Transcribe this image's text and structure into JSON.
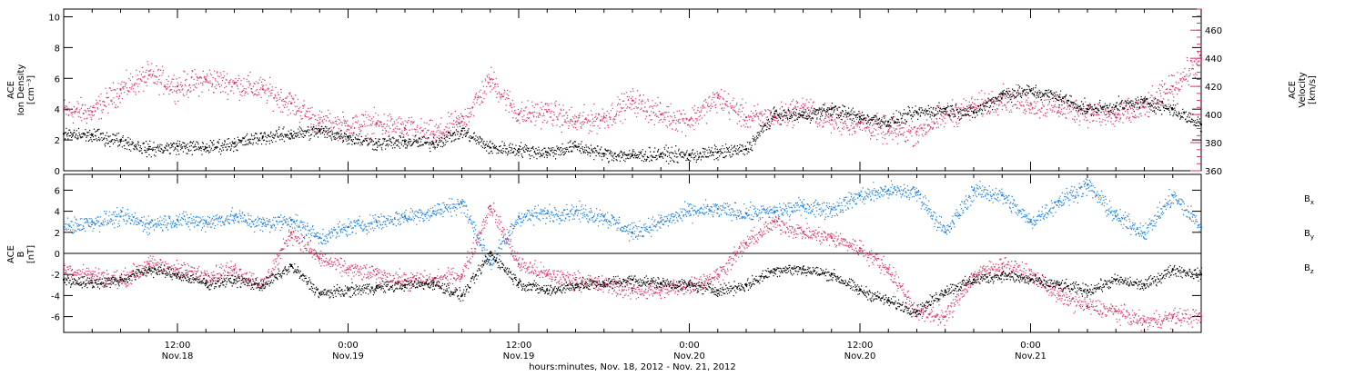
{
  "colors": {
    "black": "#000000",
    "pink": "#e0315f",
    "blue": "#1a7fe0",
    "axis": "#000000"
  },
  "chart_data": [
    {
      "type": "scatter",
      "panel": "density-velocity",
      "ylabel_left": [
        "ACE",
        "Ion Density",
        "[cm⁻³]"
      ],
      "ylabel_right": [
        "ACE",
        "Velocity",
        "[km/s]"
      ],
      "left_axis": {
        "range": [
          0,
          10.5
        ],
        "ticks": [
          0,
          2,
          4,
          6,
          8,
          10
        ],
        "tick_labels": [
          "0",
          "2",
          "4",
          "6",
          "8",
          "10"
        ]
      },
      "right_axis": {
        "range": [
          360,
          475
        ],
        "ticks": [
          360,
          380,
          400,
          420,
          440,
          460
        ],
        "tick_labels": [
          "360",
          "380",
          "400",
          "420",
          "440",
          "460"
        ]
      },
      "series": [
        {
          "color": "black",
          "axis": "left",
          "x": [
            0,
            2,
            4,
            6,
            8,
            10,
            12,
            14,
            16,
            18,
            20,
            22,
            24,
            26,
            28,
            30,
            32,
            34,
            36,
            38,
            40,
            42,
            44,
            46,
            48,
            50,
            52,
            54,
            56,
            58,
            60,
            62,
            64,
            66,
            68,
            70,
            72,
            74,
            76,
            78,
            80
          ],
          "y": [
            2.4,
            2.3,
            2.0,
            1.4,
            1.6,
            1.5,
            1.8,
            2.2,
            2.4,
            2.6,
            2.2,
            1.8,
            1.9,
            1.8,
            2.6,
            1.5,
            1.4,
            1.2,
            1.6,
            1.1,
            1.0,
            1.1,
            1.0,
            1.2,
            1.4,
            3.7,
            3.6,
            4.0,
            3.5,
            3.2,
            3.8,
            4.0,
            3.8,
            5.0,
            5.2,
            4.8,
            4.0,
            4.2,
            4.5,
            4.0,
            3.0
          ]
        },
        {
          "color": "pink",
          "axis": "right",
          "x": [
            0,
            2,
            4,
            6,
            8,
            10,
            12,
            14,
            16,
            18,
            20,
            22,
            24,
            26,
            28,
            30,
            32,
            34,
            36,
            38,
            40,
            42,
            44,
            46,
            48,
            50,
            52,
            54,
            56,
            58,
            60,
            62,
            64,
            66,
            68,
            70,
            72,
            74,
            76,
            78,
            80
          ],
          "y": [
            403,
            402,
            418,
            428,
            420,
            425,
            422,
            418,
            408,
            394,
            392,
            394,
            390,
            386,
            395,
            425,
            400,
            402,
            395,
            398,
            410,
            400,
            396,
            412,
            398,
            398,
            405,
            396,
            394,
            388,
            388,
            400,
            405,
            412,
            408,
            405,
            402,
            398,
            405,
            420,
            440
          ]
        }
      ]
    },
    {
      "type": "scatter",
      "panel": "magnetic-field",
      "ylabel_left": [
        "ACE",
        "B",
        "[nT]"
      ],
      "left_axis": {
        "range": [
          -7.5,
          7.5
        ],
        "ticks": [
          -6,
          -4,
          -2,
          0,
          2,
          4,
          6
        ],
        "tick_labels": [
          "-6",
          "-4",
          "-2",
          "0",
          "2",
          "4",
          "6"
        ]
      },
      "legend": [
        "Bx",
        "By",
        "Bz"
      ],
      "legend_placement": "right",
      "series": [
        {
          "name": "Bx",
          "color": "black",
          "x": [
            0,
            2,
            4,
            6,
            8,
            10,
            12,
            14,
            16,
            18,
            20,
            22,
            24,
            26,
            28,
            30,
            32,
            34,
            36,
            38,
            40,
            42,
            44,
            46,
            48,
            50,
            52,
            54,
            56,
            58,
            60,
            62,
            64,
            66,
            68,
            70,
            72,
            74,
            76,
            78,
            80
          ],
          "y": [
            -2.5,
            -2.8,
            -2.5,
            -1.5,
            -2.0,
            -2.8,
            -2.5,
            -3.0,
            -1.2,
            -3.8,
            -3.5,
            -3.2,
            -3.0,
            -2.8,
            -4.0,
            0.0,
            -2.8,
            -3.5,
            -3.0,
            -2.8,
            -2.5,
            -2.8,
            -3.0,
            -3.5,
            -3.0,
            -1.5,
            -1.5,
            -2.0,
            -3.5,
            -4.5,
            -5.5,
            -3.5,
            -2.5,
            -2.0,
            -2.5,
            -3.0,
            -3.5,
            -2.5,
            -3.0,
            -1.5,
            -2.0
          ]
        },
        {
          "name": "By",
          "color": "blue",
          "x": [
            0,
            2,
            4,
            6,
            8,
            10,
            12,
            14,
            16,
            18,
            20,
            22,
            24,
            26,
            28,
            30,
            32,
            34,
            36,
            38,
            40,
            42,
            44,
            46,
            48,
            50,
            52,
            54,
            56,
            58,
            60,
            62,
            64,
            66,
            68,
            70,
            72,
            74,
            76,
            78,
            80
          ],
          "y": [
            2.5,
            3.0,
            3.5,
            2.8,
            3.2,
            3.0,
            3.5,
            2.8,
            3.2,
            1.5,
            2.5,
            3.0,
            3.5,
            4.0,
            4.8,
            -1.0,
            3.5,
            3.8,
            4.0,
            3.5,
            2.0,
            3.0,
            4.0,
            4.2,
            3.8,
            4.0,
            4.5,
            4.2,
            5.5,
            6.0,
            5.8,
            2.0,
            6.0,
            5.5,
            3.0,
            5.0,
            6.5,
            3.5,
            2.0,
            5.5,
            2.5
          ]
        },
        {
          "name": "Bz",
          "color": "pink",
          "x": [
            0,
            2,
            4,
            6,
            8,
            10,
            12,
            14,
            16,
            18,
            20,
            22,
            24,
            26,
            28,
            30,
            32,
            34,
            36,
            38,
            40,
            42,
            44,
            46,
            48,
            50,
            52,
            54,
            56,
            58,
            60,
            62,
            64,
            66,
            68,
            70,
            72,
            74,
            76,
            78,
            80
          ],
          "y": [
            -1.5,
            -2.0,
            -2.5,
            -1.0,
            -1.5,
            -2.0,
            -1.5,
            -3.0,
            2.0,
            -0.5,
            -1.5,
            -2.0,
            -2.5,
            -2.5,
            -2.0,
            4.5,
            -1.0,
            -2.0,
            -2.5,
            -3.0,
            -3.5,
            -3.5,
            -3.0,
            -2.0,
            1.0,
            3.0,
            2.0,
            1.5,
            0.5,
            -1.5,
            -5.5,
            -6.0,
            -2.0,
            -1.0,
            -2.0,
            -4.0,
            -5.0,
            -5.5,
            -6.5,
            -6.0,
            -6.0
          ]
        }
      ]
    }
  ],
  "x_axis": {
    "range_hours": [
      0,
      80
    ],
    "ticks": [
      {
        "hours": 8,
        "time": "12:00",
        "date": "Nov.18"
      },
      {
        "hours": 20,
        "time": "0:00",
        "date": "Nov.19"
      },
      {
        "hours": 32,
        "time": "12:00",
        "date": "Nov.19"
      },
      {
        "hours": 44,
        "time": "0:00",
        "date": "Nov.20"
      },
      {
        "hours": 56,
        "time": "12:00",
        "date": "Nov.20"
      },
      {
        "hours": 68,
        "time": "0:00",
        "date": "Nov.21"
      }
    ],
    "xlabel": "hours:minutes, Nov. 18, 2012 - Nov. 21, 2012"
  }
}
